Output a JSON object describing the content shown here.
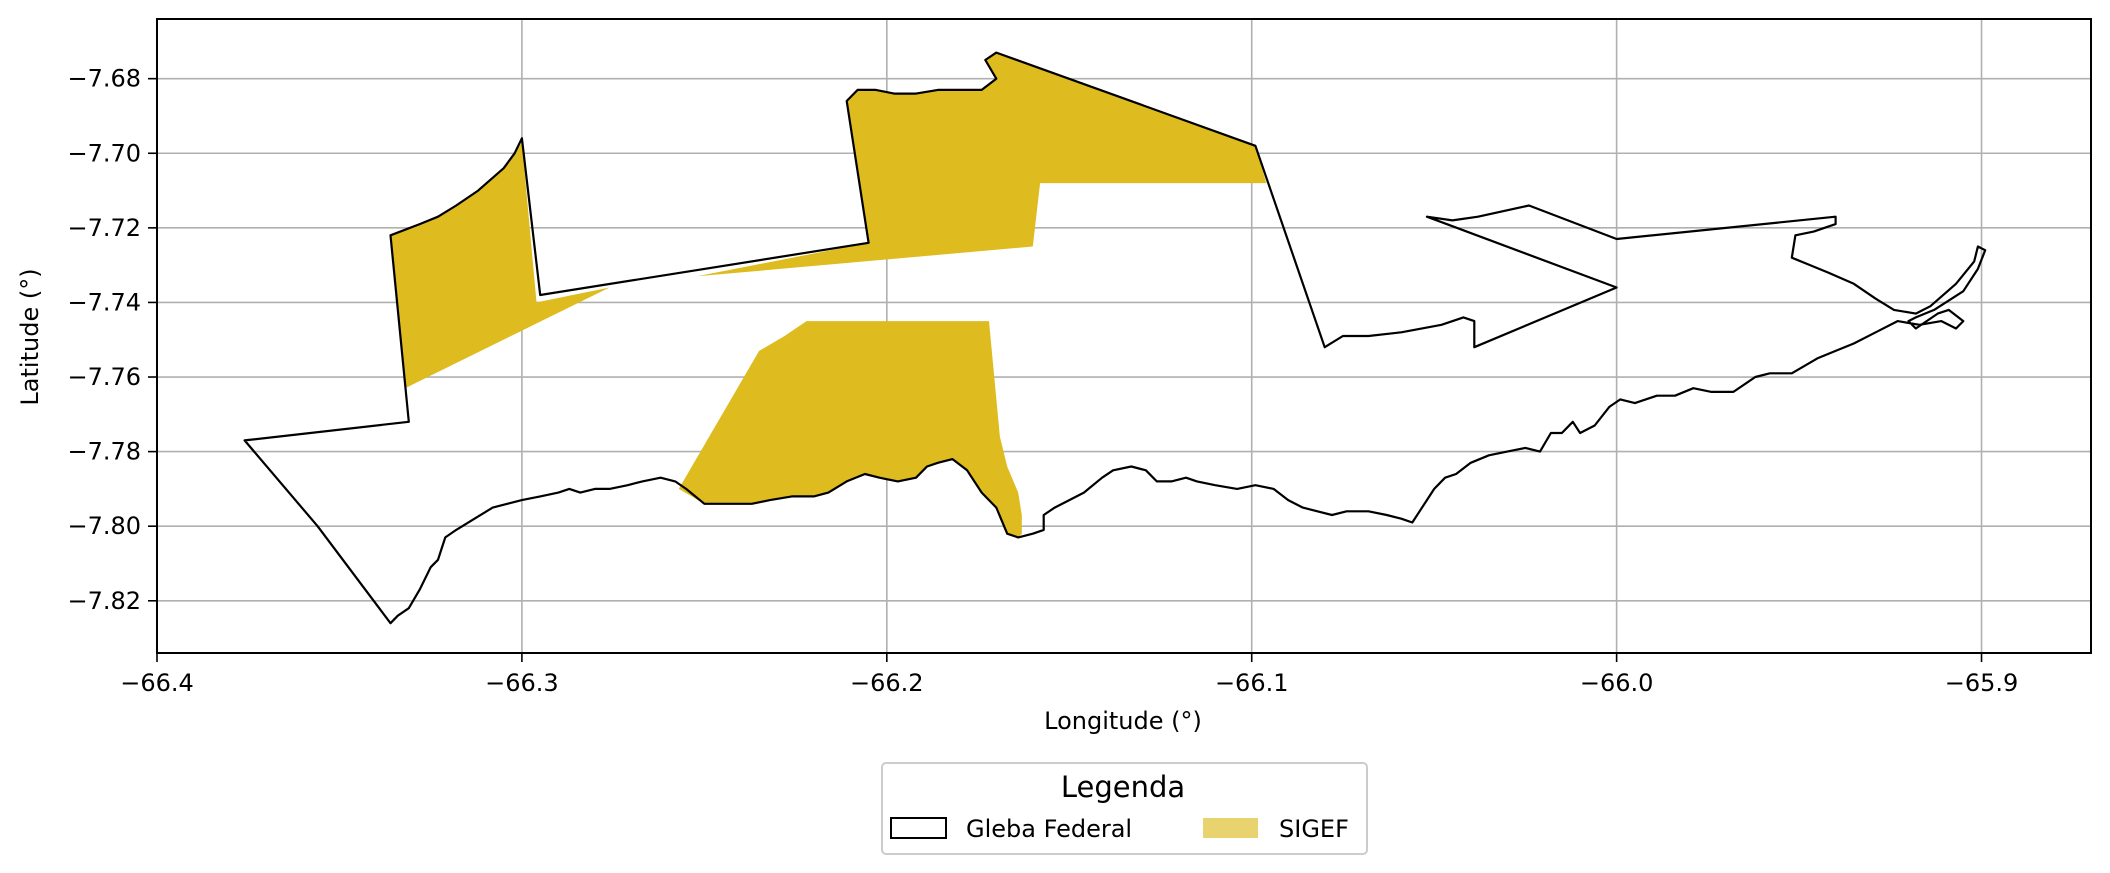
{
  "chart_data": {
    "type": "map",
    "xlabel": "Longitude (°)",
    "ylabel": "Latitude (°)",
    "xlim": [
      -66.4,
      -65.87
    ],
    "ylim": [
      -7.834,
      -7.664
    ],
    "grid": true,
    "x_ticks": [
      -66.4,
      -66.3,
      -66.2,
      -66.1,
      -66.0,
      -65.9
    ],
    "x_tick_labels": [
      "−66.4",
      "−66.3",
      "−66.2",
      "−66.1",
      "−66.0",
      "−65.9"
    ],
    "y_ticks": [
      -7.68,
      -7.7,
      -7.72,
      -7.74,
      -7.76,
      -7.78,
      -7.8,
      -7.82
    ],
    "y_tick_labels": [
      "−7.68",
      "−7.70",
      "−7.72",
      "−7.74",
      "−7.76",
      "−7.78",
      "−7.80",
      "−7.82"
    ],
    "legend": {
      "title": "Legenda",
      "placement": "bottom-center",
      "entries": [
        {
          "label": "Gleba Federal",
          "style": "outline",
          "color": "#000000"
        },
        {
          "label": "SIGEF",
          "style": "fill",
          "color": "#E8D36E"
        }
      ]
    },
    "sigef_color": "#DEBB1E",
    "gleba_federal_boundary": [
      [
        -66.376,
        -7.777
      ],
      [
        -66.331,
        -7.772
      ],
      [
        -66.336,
        -7.722
      ],
      [
        -66.328,
        -7.719
      ],
      [
        -66.323,
        -7.717
      ],
      [
        -66.318,
        -7.714
      ],
      [
        -66.312,
        -7.71
      ],
      [
        -66.305,
        -7.704
      ],
      [
        -66.302,
        -7.7
      ],
      [
        -66.3,
        -7.696
      ],
      [
        -66.295,
        -7.738
      ],
      [
        -66.205,
        -7.724
      ],
      [
        -66.211,
        -7.686
      ],
      [
        -66.208,
        -7.683
      ],
      [
        -66.203,
        -7.683
      ],
      [
        -66.198,
        -7.684
      ],
      [
        -66.192,
        -7.684
      ],
      [
        -66.186,
        -7.683
      ],
      [
        -66.18,
        -7.683
      ],
      [
        -66.174,
        -7.683
      ],
      [
        -66.17,
        -7.68
      ],
      [
        -66.173,
        -7.675
      ],
      [
        -66.17,
        -7.673
      ],
      [
        -66.099,
        -7.698
      ],
      [
        -66.08,
        -7.752
      ],
      [
        -66.075,
        -7.749
      ],
      [
        -66.068,
        -7.749
      ],
      [
        -66.059,
        -7.748
      ],
      [
        -66.048,
        -7.746
      ],
      [
        -66.042,
        -7.744
      ],
      [
        -66.039,
        -7.745
      ],
      [
        -66.039,
        -7.752
      ],
      [
        -66.0,
        -7.736
      ],
      [
        -66.052,
        -7.717
      ],
      [
        -66.045,
        -7.718
      ],
      [
        -66.038,
        -7.717
      ],
      [
        -66.024,
        -7.714
      ],
      [
        -66.0,
        -7.723
      ],
      [
        -65.94,
        -7.717
      ],
      [
        -65.94,
        -7.719
      ],
      [
        -65.946,
        -7.721
      ],
      [
        -65.951,
        -7.722
      ],
      [
        -65.952,
        -7.728
      ],
      [
        -65.947,
        -7.73
      ],
      [
        -65.942,
        -7.732
      ],
      [
        -65.935,
        -7.735
      ],
      [
        -65.929,
        -7.739
      ],
      [
        -65.924,
        -7.742
      ],
      [
        -65.918,
        -7.743
      ],
      [
        -65.914,
        -7.741
      ],
      [
        -65.907,
        -7.735
      ],
      [
        -65.902,
        -7.729
      ],
      [
        -65.901,
        -7.725
      ],
      [
        -65.899,
        -7.726
      ],
      [
        -65.901,
        -7.731
      ],
      [
        -65.905,
        -7.737
      ],
      [
        -65.913,
        -7.742
      ],
      [
        -65.918,
        -7.744
      ],
      [
        -65.92,
        -7.745
      ],
      [
        -65.918,
        -7.747
      ],
      [
        -65.912,
        -7.743
      ],
      [
        -65.909,
        -7.742
      ],
      [
        -65.905,
        -7.745
      ],
      [
        -65.907,
        -7.747
      ],
      [
        -65.911,
        -7.745
      ],
      [
        -65.917,
        -7.746
      ],
      [
        -65.923,
        -7.745
      ],
      [
        -65.929,
        -7.748
      ],
      [
        -65.935,
        -7.751
      ],
      [
        -65.94,
        -7.753
      ],
      [
        -65.945,
        -7.755
      ],
      [
        -65.952,
        -7.759
      ],
      [
        -65.958,
        -7.759
      ],
      [
        -65.962,
        -7.76
      ],
      [
        -65.968,
        -7.764
      ],
      [
        -65.974,
        -7.764
      ],
      [
        -65.979,
        -7.763
      ],
      [
        -65.984,
        -7.765
      ],
      [
        -65.989,
        -7.765
      ],
      [
        -65.995,
        -7.767
      ],
      [
        -65.999,
        -7.766
      ],
      [
        -66.002,
        -7.768
      ],
      [
        -66.006,
        -7.773
      ],
      [
        -66.01,
        -7.775
      ],
      [
        -66.012,
        -7.772
      ],
      [
        -66.015,
        -7.775
      ],
      [
        -66.018,
        -7.775
      ],
      [
        -66.021,
        -7.78
      ],
      [
        -66.025,
        -7.779
      ],
      [
        -66.03,
        -7.78
      ],
      [
        -66.035,
        -7.781
      ],
      [
        -66.04,
        -7.783
      ],
      [
        -66.044,
        -7.786
      ],
      [
        -66.047,
        -7.787
      ],
      [
        -66.05,
        -7.79
      ],
      [
        -66.052,
        -7.793
      ],
      [
        -66.054,
        -7.796
      ],
      [
        -66.056,
        -7.799
      ],
      [
        -66.059,
        -7.798
      ],
      [
        -66.063,
        -7.797
      ],
      [
        -66.068,
        -7.796
      ],
      [
        -66.074,
        -7.796
      ],
      [
        -66.078,
        -7.797
      ],
      [
        -66.082,
        -7.796
      ],
      [
        -66.086,
        -7.795
      ],
      [
        -66.09,
        -7.793
      ],
      [
        -66.094,
        -7.79
      ],
      [
        -66.099,
        -7.789
      ],
      [
        -66.104,
        -7.79
      ],
      [
        -66.11,
        -7.789
      ],
      [
        -66.115,
        -7.788
      ],
      [
        -66.118,
        -7.787
      ],
      [
        -66.122,
        -7.788
      ],
      [
        -66.126,
        -7.788
      ],
      [
        -66.129,
        -7.785
      ],
      [
        -66.133,
        -7.784
      ],
      [
        -66.138,
        -7.785
      ],
      [
        -66.141,
        -7.787
      ],
      [
        -66.146,
        -7.791
      ],
      [
        -66.15,
        -7.793
      ],
      [
        -66.154,
        -7.795
      ],
      [
        -66.157,
        -7.797
      ],
      [
        -66.157,
        -7.801
      ],
      [
        -66.16,
        -7.802
      ],
      [
        -66.164,
        -7.803
      ],
      [
        -66.167,
        -7.802
      ],
      [
        -66.17,
        -7.795
      ],
      [
        -66.174,
        -7.791
      ],
      [
        -66.178,
        -7.785
      ],
      [
        -66.182,
        -7.782
      ],
      [
        -66.186,
        -7.783
      ],
      [
        -66.189,
        -7.784
      ],
      [
        -66.192,
        -7.787
      ],
      [
        -66.197,
        -7.788
      ],
      [
        -66.202,
        -7.787
      ],
      [
        -66.206,
        -7.786
      ],
      [
        -66.211,
        -7.788
      ],
      [
        -66.216,
        -7.791
      ],
      [
        -66.22,
        -7.792
      ],
      [
        -66.226,
        -7.792
      ],
      [
        -66.232,
        -7.793
      ],
      [
        -66.237,
        -7.794
      ],
      [
        -66.243,
        -7.794
      ],
      [
        -66.25,
        -7.794
      ],
      [
        -66.255,
        -7.79
      ],
      [
        -66.258,
        -7.788
      ],
      [
        -66.262,
        -7.787
      ],
      [
        -66.267,
        -7.788
      ],
      [
        -66.271,
        -7.789
      ],
      [
        -66.276,
        -7.79
      ],
      [
        -66.28,
        -7.79
      ],
      [
        -66.284,
        -7.791
      ],
      [
        -66.287,
        -7.79
      ],
      [
        -66.29,
        -7.791
      ],
      [
        -66.295,
        -7.792
      ],
      [
        -66.3,
        -7.793
      ],
      [
        -66.304,
        -7.794
      ],
      [
        -66.308,
        -7.795
      ],
      [
        -66.313,
        -7.798
      ],
      [
        -66.318,
        -7.801
      ],
      [
        -66.321,
        -7.803
      ],
      [
        -66.322,
        -7.806
      ],
      [
        -66.323,
        -7.809
      ],
      [
        -66.325,
        -7.811
      ],
      [
        -66.328,
        -7.817
      ],
      [
        -66.331,
        -7.822
      ],
      [
        -66.334,
        -7.824
      ],
      [
        -66.336,
        -7.826
      ],
      [
        -66.356,
        -7.8
      ],
      [
        -66.376,
        -7.777
      ]
    ],
    "sigef_parcels": [
      [
        [
          -66.336,
          -7.722
        ],
        [
          -66.328,
          -7.719
        ],
        [
          -66.323,
          -7.717
        ],
        [
          -66.318,
          -7.714
        ],
        [
          -66.312,
          -7.71
        ],
        [
          -66.305,
          -7.704
        ],
        [
          -66.302,
          -7.7
        ],
        [
          -66.3,
          -7.697
        ],
        [
          -66.296,
          -7.74
        ],
        [
          -66.276,
          -7.736
        ],
        [
          -66.332,
          -7.763
        ]
      ],
      [
        [
          -66.211,
          -7.686
        ],
        [
          -66.208,
          -7.683
        ],
        [
          -66.203,
          -7.683
        ],
        [
          -66.198,
          -7.684
        ],
        [
          -66.192,
          -7.684
        ],
        [
          -66.186,
          -7.683
        ],
        [
          -66.18,
          -7.683
        ],
        [
          -66.174,
          -7.683
        ],
        [
          -66.17,
          -7.68
        ],
        [
          -66.173,
          -7.675
        ],
        [
          -66.17,
          -7.673
        ],
        [
          -66.099,
          -7.698
        ],
        [
          -66.096,
          -7.708
        ],
        [
          -66.158,
          -7.708
        ],
        [
          -66.16,
          -7.725
        ],
        [
          -66.252,
          -7.733
        ],
        [
          -66.205,
          -7.724
        ]
      ],
      [
        [
          -66.257,
          -7.79
        ],
        [
          -66.235,
          -7.753
        ],
        [
          -66.228,
          -7.749
        ],
        [
          -66.222,
          -7.745
        ],
        [
          -66.172,
          -7.745
        ],
        [
          -66.169,
          -7.776
        ],
        [
          -66.167,
          -7.784
        ],
        [
          -66.164,
          -7.791
        ],
        [
          -66.163,
          -7.797
        ],
        [
          -66.163,
          -7.802
        ],
        [
          -66.164,
          -7.803
        ],
        [
          -66.167,
          -7.802
        ],
        [
          -66.17,
          -7.795
        ],
        [
          -66.174,
          -7.791
        ],
        [
          -66.178,
          -7.785
        ],
        [
          -66.182,
          -7.782
        ],
        [
          -66.186,
          -7.783
        ],
        [
          -66.189,
          -7.784
        ],
        [
          -66.192,
          -7.787
        ],
        [
          -66.197,
          -7.788
        ],
        [
          -66.202,
          -7.787
        ],
        [
          -66.206,
          -7.786
        ],
        [
          -66.211,
          -7.788
        ],
        [
          -66.216,
          -7.791
        ],
        [
          -66.22,
          -7.792
        ],
        [
          -66.226,
          -7.792
        ],
        [
          -66.232,
          -7.793
        ],
        [
          -66.237,
          -7.794
        ],
        [
          -66.243,
          -7.794
        ],
        [
          -66.25,
          -7.794
        ]
      ]
    ]
  }
}
